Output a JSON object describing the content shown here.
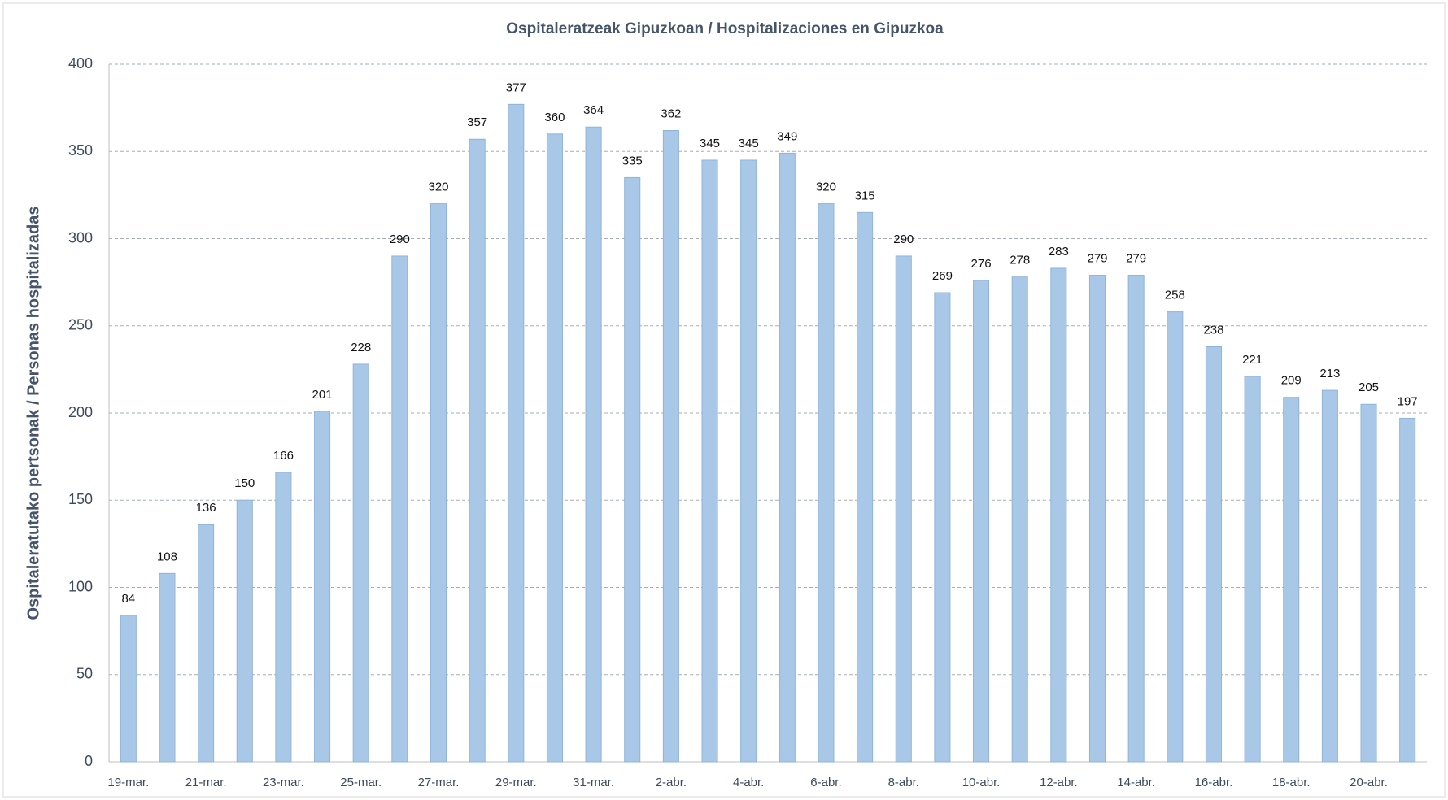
{
  "chart_data": {
    "type": "bar",
    "title": "Ospitaleratzeak Gipuzkoan / Hospitalizaciones en Gipuzkoa",
    "y_label": "Ospitaleratutako pertsonak / Personas hospitalizadas",
    "categories": [
      "19-mar.",
      null,
      "21-mar.",
      null,
      "23-mar.",
      null,
      "25-mar.",
      null,
      "27-mar.",
      null,
      "29-mar.",
      null,
      "31-mar.",
      null,
      "2-abr.",
      null,
      "4-abr.",
      null,
      "6-abr.",
      null,
      "8-abr.",
      null,
      "10-abr.",
      null,
      "12-abr.",
      null,
      "14-abr.",
      null,
      "16-abr.",
      null,
      "18-abr.",
      null,
      "20-abr.",
      null
    ],
    "values": [
      84,
      108,
      136,
      150,
      166,
      201,
      228,
      290,
      320,
      357,
      377,
      360,
      364,
      335,
      362,
      345,
      345,
      349,
      320,
      315,
      290,
      269,
      276,
      278,
      283,
      279,
      279,
      258,
      238,
      221,
      209,
      213,
      205,
      197
    ],
    "color": "#a9c8e8",
    "ylim": [
      0,
      400
    ],
    "yticks": [
      0,
      50,
      100,
      150,
      200,
      250,
      300,
      350,
      400
    ],
    "grid": true
  }
}
